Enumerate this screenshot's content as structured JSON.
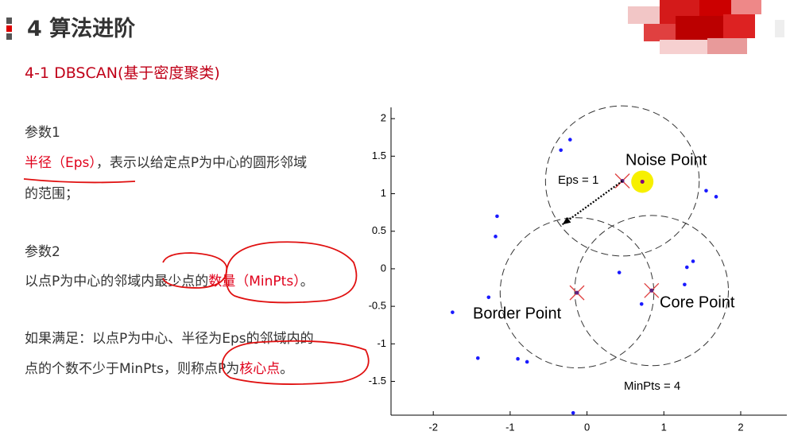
{
  "header": {
    "title": "4 算法进阶",
    "subtitle": "4-1 DBSCAN(基于密度聚类)"
  },
  "body": {
    "accent": "#e0001b",
    "lines": [
      [
        {
          "text": "参数1"
        }
      ],
      [
        {
          "text": "半径（Eps）",
          "color": "#e0001b"
        },
        {
          "text": "，表示以给定点P为中心的圆形邻域"
        }
      ],
      [
        {
          "text": "的范围；"
        }
      ],
      [
        {
          "text": "参数2"
        }
      ],
      [
        {
          "text": "以点P为中心的邻域内最少点的"
        },
        {
          "text": "数量（MinPts）",
          "color": "#e0001b"
        },
        {
          "text": "。"
        }
      ],
      [
        {
          "text": "如果满足：以点P为中心、半径为Eps的邻域内的"
        }
      ],
      [
        {
          "text": "点的个数不少于MinPts，则称点P为"
        },
        {
          "text": "核心点",
          "color": "#e0001b"
        },
        {
          "text": "。"
        }
      ]
    ]
  },
  "figure": {
    "xlim": [
      -2.55,
      2.6
    ],
    "ylim": [
      -1.95,
      2.15
    ],
    "xticks": [
      -2,
      -1,
      0,
      1,
      2
    ],
    "yticks": [
      2,
      1.5,
      1,
      0.5,
      0,
      -0.5,
      -1,
      -1.5
    ],
    "point_color": "#1a1aff",
    "points": {
      "x": [
        -0.34,
        -0.22,
        -1.17,
        -1.19,
        -1.28,
        -1.75,
        -1.42,
        -0.9,
        -0.78,
        -0.18,
        0.42,
        0.71,
        1.3,
        1.38,
        1.27,
        1.55,
        1.68
      ],
      "y": [
        1.58,
        1.72,
        0.7,
        0.43,
        -0.38,
        -0.58,
        -1.19,
        -1.2,
        -1.24,
        -1.92,
        -0.05,
        -0.47,
        0.02,
        0.1,
        -0.21,
        1.04,
        0.96
      ]
    },
    "circles": [
      {
        "x": 0.46,
        "y": 1.17,
        "r": 1
      },
      {
        "x": -0.13,
        "y": -0.32,
        "r": 1
      },
      {
        "x": 0.84,
        "y": -0.29,
        "r": 1
      }
    ],
    "noise": {
      "x": 0.72,
      "y": 1.16
    },
    "eps_arrow": {
      "x": [
        0.46,
        -0.32
      ],
      "y": [
        1.17,
        0.59
      ]
    },
    "labels": {
      "noise": "Noise Point",
      "eps": "Eps = 1",
      "border": "Border Point",
      "core": "Core Point",
      "minpts": "MinPts = 4"
    }
  }
}
